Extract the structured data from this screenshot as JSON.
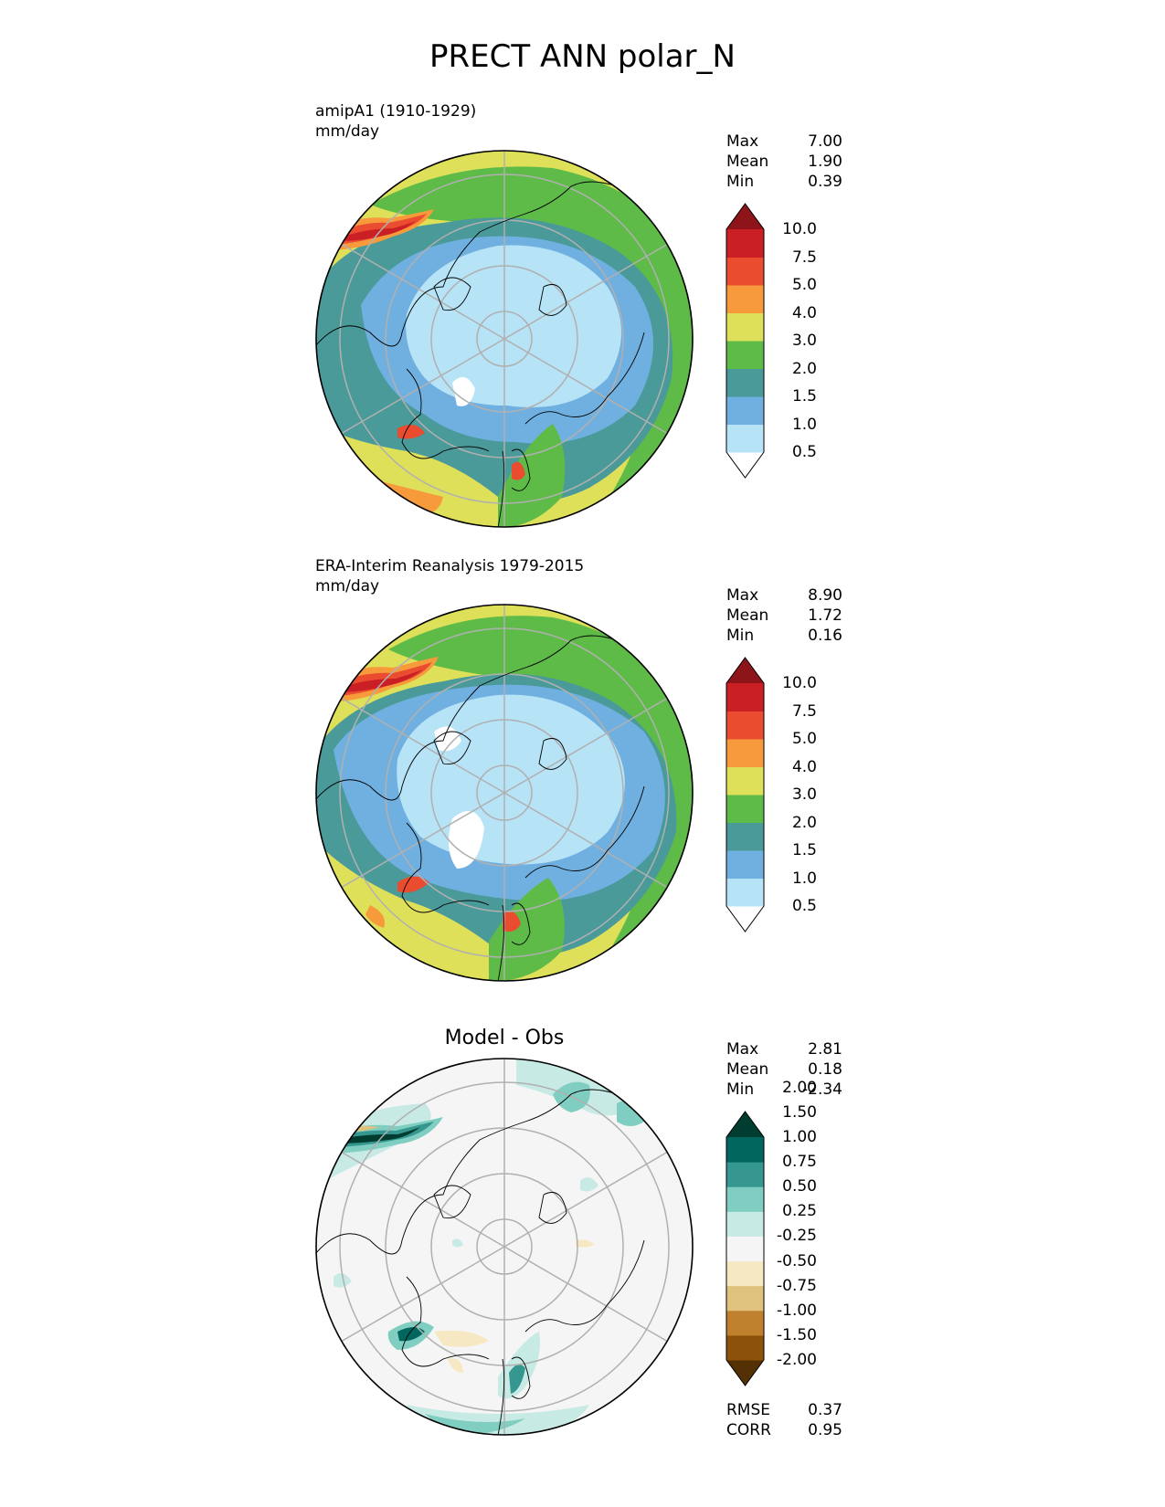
{
  "figure": {
    "title": "PRECT ANN polar_N"
  },
  "panels": [
    {
      "id": "test",
      "title_line1": "amipA1 (1910-1929)",
      "title_line2": "mm/day",
      "stats": [
        {
          "label": "Max",
          "value": "7.00"
        },
        {
          "label": "Mean",
          "value": "1.90"
        },
        {
          "label": "Min",
          "value": "0.39"
        }
      ],
      "colorbar": {
        "colors": [
          "#ffffff",
          "#b7e3f7",
          "#70b0e0",
          "#4a9a9a",
          "#5ebb48",
          "#dfe05a",
          "#f79a3c",
          "#ea4c30",
          "#c91f25",
          "#8d1419"
        ],
        "ticks": [
          "0.5",
          "1.0",
          "1.5",
          "2.0",
          "3.0",
          "4.0",
          "5.0",
          "7.5",
          "10.0"
        ]
      }
    },
    {
      "id": "ref",
      "title_line1": "ERA-Interim Reanalysis 1979-2015",
      "title_line2": "mm/day",
      "stats": [
        {
          "label": "Max",
          "value": "8.90"
        },
        {
          "label": "Mean",
          "value": "1.72"
        },
        {
          "label": "Min",
          "value": "0.16"
        }
      ],
      "colorbar": {
        "colors": [
          "#ffffff",
          "#b7e3f7",
          "#70b0e0",
          "#4a9a9a",
          "#5ebb48",
          "#dfe05a",
          "#f79a3c",
          "#ea4c30",
          "#c91f25",
          "#8d1419"
        ],
        "ticks": [
          "0.5",
          "1.0",
          "1.5",
          "2.0",
          "3.0",
          "4.0",
          "5.0",
          "7.5",
          "10.0"
        ]
      }
    },
    {
      "id": "diff",
      "title_center": "Model - Obs",
      "stats": [
        {
          "label": "Max",
          "value": "2.81"
        },
        {
          "label": "Mean",
          "value": "0.18"
        },
        {
          "label": "Min",
          "value": "-2.34"
        }
      ],
      "colorbar": {
        "colors": [
          "#543005",
          "#8c510a",
          "#bf812d",
          "#dfc27d",
          "#f6e8c3",
          "#f5f5f5",
          "#c7eae5",
          "#80cdc1",
          "#35978f",
          "#01665e",
          "#003c30"
        ],
        "ticks": [
          "-2.00",
          "-1.50",
          "-1.00",
          "-0.75",
          "-0.50",
          "-0.25",
          "0.25",
          "0.50",
          "0.75",
          "1.00",
          "1.50",
          "2.00"
        ]
      },
      "metrics": [
        {
          "label": "RMSE",
          "value": "0.37"
        },
        {
          "label": "CORR",
          "value": "0.95"
        }
      ]
    }
  ]
}
